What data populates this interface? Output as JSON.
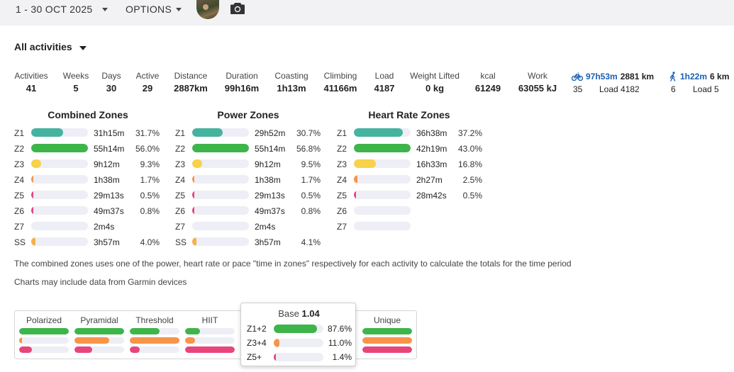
{
  "topbar": {
    "date_range": "1 - 30 OCT 2025",
    "options_label": "OPTIONS"
  },
  "filter": {
    "label": "All activities"
  },
  "stats": [
    {
      "label": "Activities",
      "value": "41"
    },
    {
      "label": "Weeks",
      "value": "5"
    },
    {
      "label": "Days",
      "value": "30"
    },
    {
      "label": "Active",
      "value": "29"
    },
    {
      "label": "Distance",
      "value": "2887km"
    },
    {
      "label": "Duration",
      "value": "99h16m"
    },
    {
      "label": "Coasting",
      "value": "1h13m"
    },
    {
      "label": "Climbing",
      "value": "41166m"
    },
    {
      "label": "Load",
      "value": "4187"
    },
    {
      "label": "Weight Lifted",
      "value": "0 kg"
    },
    {
      "label": "kcal",
      "value": "61249"
    },
    {
      "label": "Work",
      "value": "63055 kJ"
    }
  ],
  "sports": [
    {
      "icon": "bike-icon",
      "time": "97h53m",
      "distance": "2881 km",
      "count": "35",
      "load": "Load 4182"
    },
    {
      "icon": "walk-icon",
      "time": "1h22m",
      "distance": "6 km",
      "count": "6",
      "load": "Load 5"
    }
  ],
  "colors": {
    "z1": "#45b3a0",
    "z2": "#3db54a",
    "z3": "#f7d24a",
    "z4": "#f7944a",
    "z5": "#e8457c",
    "ss": "#f5b14a",
    "track": "#eeeef6",
    "link": "#1a5fb4"
  },
  "zones": [
    {
      "title": "Combined Zones",
      "rows": [
        {
          "zone": "Z1",
          "time": "31h15m",
          "pct": "31.7%",
          "fraction": 0.56,
          "color": "z1"
        },
        {
          "zone": "Z2",
          "time": "55h14m",
          "pct": "56.0%",
          "fraction": 1.0,
          "color": "z2"
        },
        {
          "zone": "Z3",
          "time": "9h12m",
          "pct": "9.3%",
          "fraction": 0.17,
          "color": "z3"
        },
        {
          "zone": "Z4",
          "time": "1h38m",
          "pct": "1.7%",
          "fraction": 0.04,
          "color": "z4"
        },
        {
          "zone": "Z5",
          "time": "29m13s",
          "pct": "0.5%",
          "fraction": 0.02,
          "color": "z5"
        },
        {
          "zone": "Z6",
          "time": "49m37s",
          "pct": "0.8%",
          "fraction": 0.02,
          "color": "z5"
        },
        {
          "zone": "Z7",
          "time": "2m4s",
          "pct": "",
          "fraction": 0,
          "color": "z5"
        },
        {
          "zone": "SS",
          "time": "3h57m",
          "pct": "4.0%",
          "fraction": 0.07,
          "color": "ss"
        }
      ]
    },
    {
      "title": "Power Zones",
      "rows": [
        {
          "zone": "Z1",
          "time": "29h52m",
          "pct": "30.7%",
          "fraction": 0.54,
          "color": "z1"
        },
        {
          "zone": "Z2",
          "time": "55h14m",
          "pct": "56.8%",
          "fraction": 1.0,
          "color": "z2"
        },
        {
          "zone": "Z3",
          "time": "9h12m",
          "pct": "9.5%",
          "fraction": 0.17,
          "color": "z3"
        },
        {
          "zone": "Z4",
          "time": "1h38m",
          "pct": "1.7%",
          "fraction": 0.04,
          "color": "z4"
        },
        {
          "zone": "Z5",
          "time": "29m13s",
          "pct": "0.5%",
          "fraction": 0.02,
          "color": "z5"
        },
        {
          "zone": "Z6",
          "time": "49m37s",
          "pct": "0.8%",
          "fraction": 0.02,
          "color": "z5"
        },
        {
          "zone": "Z7",
          "time": "2m4s",
          "pct": "",
          "fraction": 0,
          "color": "z5"
        },
        {
          "zone": "SS",
          "time": "3h57m",
          "pct": "4.1%",
          "fraction": 0.07,
          "color": "ss"
        }
      ]
    },
    {
      "title": "Heart Rate Zones",
      "rows": [
        {
          "zone": "Z1",
          "time": "36h38m",
          "pct": "37.2%",
          "fraction": 0.86,
          "color": "z1"
        },
        {
          "zone": "Z2",
          "time": "42h19m",
          "pct": "43.0%",
          "fraction": 1.0,
          "color": "z2"
        },
        {
          "zone": "Z3",
          "time": "16h33m",
          "pct": "16.8%",
          "fraction": 0.39,
          "color": "z3"
        },
        {
          "zone": "Z4",
          "time": "2h27m",
          "pct": "2.5%",
          "fraction": 0.06,
          "color": "z4"
        },
        {
          "zone": "Z5",
          "time": "28m42s",
          "pct": "0.5%",
          "fraction": 0.02,
          "color": "z5"
        },
        {
          "zone": "Z6",
          "time": "",
          "pct": "",
          "fraction": 0,
          "color": "z5"
        },
        {
          "zone": "Z7",
          "time": "",
          "pct": "",
          "fraction": 0,
          "color": "z5"
        }
      ]
    }
  ],
  "notes": {
    "combined": "The combined zones uses one of the power, heart rate or pace \"time in zones\" respectively for each activity to calculate the totals for the time period",
    "garmin": "Charts may include data from Garmin devices"
  },
  "distribution": {
    "columns": [
      {
        "label": "Polarized",
        "bars": [
          1.0,
          0.05,
          0.25
        ]
      },
      {
        "label": "Pyramidal",
        "bars": [
          1.0,
          0.7,
          0.35
        ]
      },
      {
        "label": "Threshold",
        "bars": [
          0.6,
          1.0,
          0.2
        ]
      },
      {
        "label": "HIIT",
        "bars": [
          0.3,
          0.2,
          1.0
        ]
      },
      {
        "label": "Unique",
        "bars": [
          1.0,
          1.0,
          1.0
        ]
      }
    ]
  },
  "tooltip": {
    "title": "Base",
    "value": "1.04",
    "rows": [
      {
        "label": "Z1+2",
        "pct": "87.6%",
        "fraction": 0.876,
        "color": "z2"
      },
      {
        "label": "Z3+4",
        "pct": "11.0%",
        "fraction": 0.11,
        "color": "z4"
      },
      {
        "label": "Z5+",
        "pct": "1.4%",
        "fraction": 0.014,
        "color": "z5"
      }
    ]
  }
}
